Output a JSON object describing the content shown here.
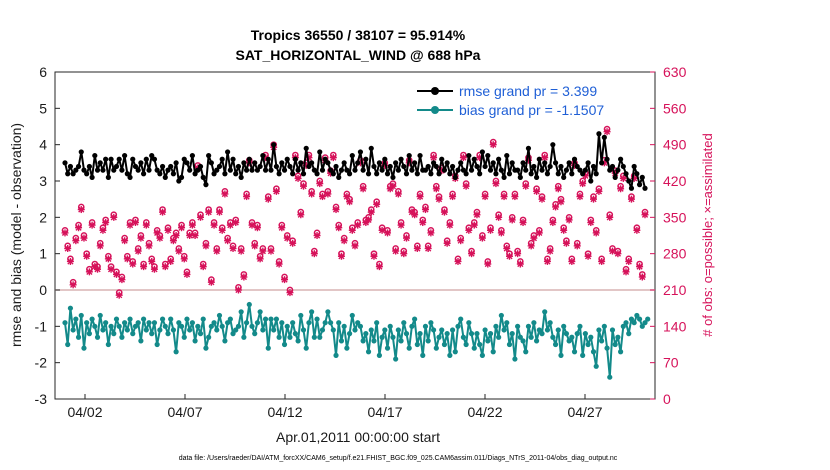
{
  "chart_data": {
    "type": "line",
    "title_line1": "Tropics 36550 / 38107 = 95.914%",
    "title_line2": "SAT_HORIZONTAL_WIND @ 688 hPa",
    "xlabel": "Apr.01,2011 00:00:00 start",
    "ylabel": "rmse and bias (model - observation)",
    "ylabel_right": "# of obs: o=possible; ×=assimilated",
    "footer": "data file: /Users/raeder/DAI/ATM_forcXX/CAM6_setup/f.e21.FHIST_BGC.f09_025.CAM6assim.011/Diags_NTrS_2011-04/obs_diag_output.nc",
    "x_range": [
      0.5,
      30.5
    ],
    "ylim": [
      -3,
      6
    ],
    "ylim_right": [
      0,
      630
    ],
    "y_ticks": [
      "-3",
      "-2",
      "-1",
      "0",
      "1",
      "2",
      "3",
      "4",
      "5",
      "6"
    ],
    "y_ticks_right": [
      "0",
      "70",
      "140",
      "210",
      "280",
      "350",
      "420",
      "490",
      "560",
      "630"
    ],
    "x_ticks": [
      {
        "day": 2,
        "label": "04/02"
      },
      {
        "day": 7,
        "label": "04/07"
      },
      {
        "day": 12,
        "label": "04/12"
      },
      {
        "day": 17,
        "label": "04/17"
      },
      {
        "day": 22,
        "label": "04/22"
      },
      {
        "day": 27,
        "label": "04/27"
      }
    ],
    "legend": {
      "position": "top-right",
      "entries": [
        {
          "label": "rmse grand pr = 3.399",
          "color": "#000000"
        },
        {
          "label": "bias grand pr = -1.1507",
          "color": "#138a8a"
        }
      ]
    },
    "colors": {
      "rmse": "#000000",
      "bias": "#138a8a",
      "obs": "#d6125a",
      "zero_line": "#d8b4b4",
      "axis": "#262626"
    },
    "series": {
      "rmse": [
        3.5,
        3.2,
        3.4,
        3.2,
        3.3,
        3.4,
        3.8,
        3.3,
        3.2,
        3.4,
        3.1,
        3.7,
        3.3,
        3.5,
        3.3,
        3.6,
        3.1,
        3.6,
        3.3,
        3.4,
        3.6,
        3.3,
        3.7,
        3.2,
        3.1,
        3.6,
        3.4,
        3.3,
        3.5,
        3.2,
        3.6,
        3.3,
        3.7,
        3.6,
        3.3,
        3.2,
        3.4,
        3.1,
        3.3,
        3.4,
        3.2,
        3.5,
        3.0,
        3.1,
        3.6,
        3.5,
        3.3,
        3.7,
        3.2,
        3.3,
        3.4,
        3.1,
        2.9,
        3.7,
        3.5,
        3.2,
        3.3,
        3.4,
        3.6,
        3.2,
        3.8,
        3.3,
        3.6,
        3.2,
        3.4,
        3.1,
        3.5,
        3.3,
        3.6,
        3.3,
        3.5,
        3.3,
        3.4,
        3.7,
        3.3,
        3.6,
        3.3,
        4.0,
        3.4,
        3.2,
        3.5,
        3.3,
        3.6,
        3.4,
        3.2,
        3.6,
        3.3,
        3.5,
        3.2,
        3.9,
        3.4,
        3.5,
        3.3,
        3.2,
        3.8,
        3.3,
        3.6,
        3.5,
        3.3,
        3.2,
        3.4,
        3.1,
        3.3,
        3.5,
        3.3,
        3.2,
        3.7,
        3.3,
        3.5,
        3.8,
        3.3,
        3.6,
        3.2,
        3.9,
        3.4,
        3.2,
        3.5,
        3.3,
        3.6,
        3.2,
        3.4,
        3.1,
        3.5,
        3.3,
        3.6,
        3.4,
        3.2,
        3.7,
        3.3,
        3.5,
        3.2,
        3.7,
        3.3,
        3.3,
        3.4,
        3.2,
        3.5,
        3.4,
        3.2,
        3.6,
        3.3,
        3.5,
        3.2,
        3.4,
        3.1,
        3.3,
        3.5,
        3.3,
        3.2,
        3.7,
        3.3,
        3.6,
        3.4,
        3.2,
        3.8,
        3.4,
        3.7,
        3.3,
        3.5,
        3.2,
        3.6,
        3.3,
        3.1,
        3.7,
        3.2,
        3.5,
        3.3,
        3.3,
        3.1,
        3.5,
        3.3,
        3.9,
        3.2,
        3.4,
        3.1,
        3.6,
        3.3,
        3.5,
        3.2,
        3.4,
        4.0,
        3.5,
        3.2,
        3.4,
        3.1,
        3.3,
        3.5,
        3.2,
        3.6,
        3.4,
        3.3,
        3.2,
        3.3,
        3.5,
        3.0,
        3.4,
        3.2,
        4.3,
        3.5,
        4.2,
        3.6,
        3.3,
        3.4,
        3.1,
        3.3,
        3.6,
        3.4,
        3.2,
        3.0,
        2.8,
        3.4,
        3.2,
        2.9,
        3.1,
        2.8
      ],
      "bias": [
        -0.9,
        -1.5,
        -0.5,
        -1.1,
        -0.8,
        -1.3,
        -0.7,
        -1.6,
        -0.9,
        -1.2,
        -0.8,
        -1.0,
        -1.3,
        -0.7,
        -1.1,
        -0.9,
        -1.5,
        -1.0,
        -1.2,
        -0.8,
        -1.0,
        -1.3,
        -0.9,
        -1.1,
        -0.8,
        -1.2,
        -1.0,
        -0.9,
        -1.4,
        -0.8,
        -1.1,
        -0.9,
        -1.2,
        -0.9,
        -1.5,
        -1.1,
        -0.8,
        -1.0,
        -1.2,
        -0.8,
        -1.1,
        -1.7,
        -0.9,
        -1.0,
        -1.3,
        -0.8,
        -1.1,
        -0.9,
        -1.4,
        -1.0,
        -1.2,
        -0.8,
        -1.6,
        -1.3,
        -1.0,
        -0.9,
        -1.1,
        -0.7,
        -1.0,
        -1.4,
        -0.9,
        -0.8,
        -1.2,
        -1.1,
        -1.0,
        -0.6,
        -1.3,
        -0.9,
        -0.4,
        -1.0,
        -1.2,
        -0.9,
        -0.6,
        -1.1,
        -0.8,
        -1.6,
        -0.8,
        -1.1,
        -0.8,
        -1.3,
        -0.9,
        -1.5,
        -1.0,
        -1.3,
        -0.9,
        -1.2,
        -1.4,
        -0.7,
        -1.1,
        -1.6,
        -0.9,
        -0.6,
        -1.3,
        -0.8,
        -1.3,
        -1.1,
        -0.9,
        -0.6,
        -0.9,
        -1.1,
        -1.8,
        -0.9,
        -1.4,
        -1.0,
        -1.6,
        -1.2,
        -0.7,
        -1.1,
        -0.9,
        -1.0,
        -1.4,
        -1.2,
        -1.7,
        -1.1,
        -1.4,
        -0.9,
        -1.8,
        -1.3,
        -1.1,
        -1.6,
        -1.0,
        -1.3,
        -1.9,
        -1.1,
        -1.4,
        -0.9,
        -1.2,
        -1.6,
        -1.0,
        -0.8,
        -1.5,
        -1.2,
        -1.8,
        -1.0,
        -1.4,
        -0.9,
        -1.1,
        -1.6,
        -1.3,
        -1.1,
        -1.5,
        -1.2,
        -1.8,
        -1.1,
        -1.7,
        -1.0,
        -0.8,
        -1.3,
        -1.5,
        -0.9,
        -1.2,
        -1.6,
        -1.2,
        -1.5,
        -1.8,
        -1.1,
        -1.4,
        -1.2,
        -1.7,
        -1.0,
        -1.3,
        -0.7,
        -1.1,
        -0.9,
        -1.5,
        -1.2,
        -1.9,
        -1.0,
        -1.3,
        -1.4,
        -1.7,
        -1.0,
        -1.3,
        -0.9,
        -1.4,
        -1.1,
        -1.2,
        -0.6,
        -1.1,
        -0.9,
        -1.3,
        -1.5,
        -1.1,
        -1.8,
        -1.0,
        -1.2,
        -1.4,
        -1.3,
        -1.7,
        -1.2,
        -1.0,
        -1.8,
        -1.2,
        -1.5,
        -1.3,
        -1.7,
        -2.1,
        -1.1,
        -1.4,
        -1.0,
        -1.6,
        -2.4,
        -1.1,
        -1.5,
        -1.3,
        -1.7,
        -1.0,
        -0.9,
        -1.2,
        -0.8,
        -0.9,
        -0.7,
        -0.8,
        -1.0,
        -0.9,
        -0.8
      ],
      "obs_possible": [
        325,
        295,
        270,
        225,
        310,
        335,
        370,
        315,
        280,
        250,
        340,
        260,
        255,
        300,
        330,
        345,
        275,
        255,
        355,
        245,
        205,
        235,
        310,
        275,
        340,
        265,
        345,
        290,
        315,
        260,
        340,
        300,
        270,
        255,
        325,
        315,
        365,
        260,
        330,
        270,
        310,
        320,
        290,
        335,
        275,
        245,
        320,
        340,
        320,
        450,
        355,
        260,
        300,
        365,
        230,
        340,
        290,
        365,
        330,
        400,
        310,
        340,
        295,
        345,
        215,
        290,
        240,
        395,
        460,
        340,
        300,
        335,
        275,
        290,
        470,
        390,
        290,
        490,
        405,
        265,
        335,
        235,
        315,
        210,
        305,
        470,
        430,
        360,
        415,
        455,
        470,
        400,
        285,
        320,
        420,
        395,
        465,
        400,
        440,
        470,
        370,
        335,
        280,
        310,
        395,
        385,
        330,
        300,
        340,
        460,
        410,
        345,
        350,
        365,
        280,
        380,
        260,
        330,
        455,
        325,
        410,
        415,
        290,
        400,
        340,
        285,
        315,
        460,
        365,
        360,
        295,
        395,
        345,
        370,
        295,
        325,
        470,
        410,
        390,
        445,
        365,
        305,
        340,
        395,
        430,
        270,
        310,
        470,
        415,
        330,
        285,
        340,
        360,
        470,
        315,
        395,
        265,
        330,
        495,
        420,
        355,
        325,
        395,
        295,
        280,
        350,
        395,
        285,
        265,
        345,
        415,
        465,
        300,
        315,
        405,
        325,
        390,
        470,
        270,
        290,
        345,
        375,
        410,
        385,
        330,
        305,
        350,
        270,
        455,
        300,
        395,
        420,
        435,
        280,
        345,
        390,
        325,
        405,
        270,
        460,
        520,
        355,
        290,
        440,
        285,
        410,
        430,
        250,
        270,
        390,
        430,
        330,
        260,
        240,
        360
      ],
      "obs_assimilated": [
        320,
        290,
        265,
        220,
        305,
        330,
        365,
        310,
        275,
        245,
        335,
        255,
        250,
        295,
        325,
        340,
        270,
        250,
        350,
        240,
        200,
        230,
        305,
        270,
        335,
        260,
        340,
        285,
        310,
        255,
        335,
        295,
        265,
        250,
        320,
        310,
        360,
        255,
        325,
        265,
        305,
        315,
        285,
        330,
        270,
        240,
        315,
        335,
        315,
        445,
        350,
        255,
        295,
        360,
        225,
        335,
        285,
        360,
        325,
        395,
        305,
        335,
        290,
        340,
        210,
        285,
        235,
        390,
        455,
        335,
        295,
        330,
        270,
        285,
        465,
        385,
        285,
        485,
        400,
        260,
        330,
        230,
        310,
        205,
        300,
        465,
        425,
        355,
        410,
        450,
        465,
        395,
        280,
        315,
        415,
        390,
        460,
        395,
        435,
        465,
        365,
        330,
        275,
        305,
        390,
        380,
        325,
        295,
        335,
        455,
        405,
        340,
        345,
        360,
        275,
        375,
        255,
        325,
        450,
        320,
        405,
        410,
        285,
        395,
        335,
        280,
        310,
        455,
        360,
        355,
        290,
        390,
        340,
        365,
        290,
        320,
        465,
        405,
        385,
        440,
        360,
        300,
        335,
        390,
        425,
        265,
        305,
        465,
        410,
        325,
        280,
        335,
        355,
        465,
        310,
        390,
        260,
        325,
        490,
        415,
        350,
        320,
        390,
        290,
        275,
        345,
        390,
        280,
        260,
        340,
        410,
        460,
        295,
        310,
        400,
        320,
        385,
        465,
        265,
        285,
        340,
        370,
        405,
        380,
        325,
        300,
        345,
        265,
        450,
        295,
        390,
        415,
        430,
        275,
        340,
        385,
        320,
        400,
        265,
        455,
        515,
        350,
        285,
        435,
        280,
        405,
        425,
        245,
        265,
        385,
        425,
        325,
        255,
        235,
        355
      ]
    }
  }
}
